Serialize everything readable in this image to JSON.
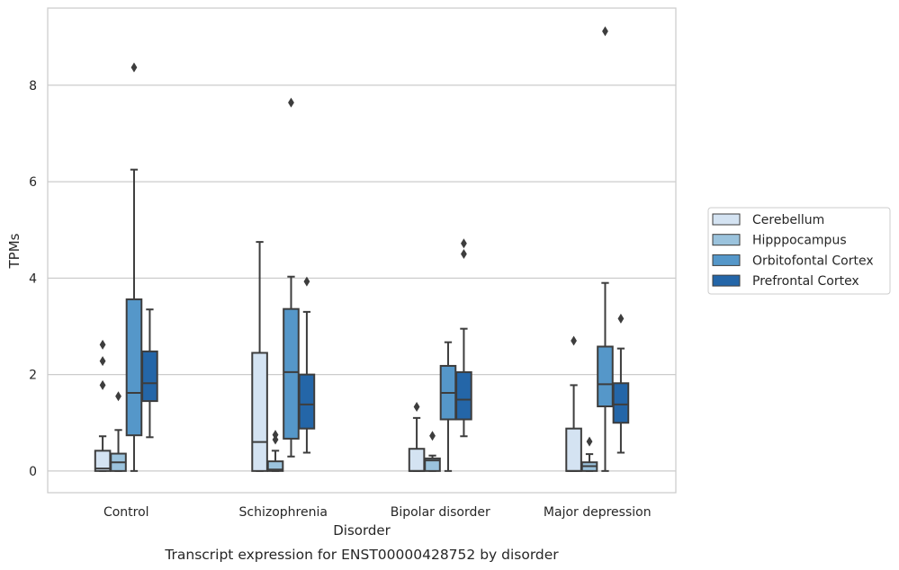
{
  "chart_data": {
    "type": "box",
    "title": "",
    "caption": "Transcript expression for ENST00000428752 by disorder",
    "xlabel": "Disorder",
    "ylabel": "TPMs",
    "ylim": [
      -0.45,
      9.6
    ],
    "yticks": [
      0,
      2,
      4,
      6,
      8
    ],
    "grid": "horizontal",
    "legend_position": "right",
    "categories": [
      "Control",
      "Schizophrenia",
      "Bipolar disorder",
      "Major depression"
    ],
    "series": [
      {
        "name": "Cerebellum",
        "color": "#d4e3f2",
        "boxes": [
          {
            "whisker_low": 0,
            "q1": 0,
            "median": 0.05,
            "q3": 0.42,
            "whisker_high": 0.72,
            "outliers": [
              1.78,
              2.28,
              2.62
            ]
          },
          {
            "whisker_low": 0,
            "q1": 0,
            "median": 0.6,
            "q3": 2.45,
            "whisker_high": 4.75,
            "outliers": []
          },
          {
            "whisker_low": 0,
            "q1": 0,
            "median": 0,
            "q3": 0.46,
            "whisker_high": 1.1,
            "outliers": [
              1.33
            ]
          },
          {
            "whisker_low": 0,
            "q1": 0,
            "median": 0,
            "q3": 0.88,
            "whisker_high": 1.78,
            "outliers": [
              2.7
            ]
          }
        ]
      },
      {
        "name": "Hipppocampus",
        "color": "#9bc3dd",
        "boxes": [
          {
            "whisker_low": 0,
            "q1": 0,
            "median": 0.18,
            "q3": 0.36,
            "whisker_high": 0.85,
            "outliers": [
              1.55
            ]
          },
          {
            "whisker_low": 0,
            "q1": 0,
            "median": 0.03,
            "q3": 0.2,
            "whisker_high": 0.42,
            "outliers": [
              0.65,
              0.75
            ]
          },
          {
            "whisker_low": 0,
            "q1": 0,
            "median": 0.22,
            "q3": 0.26,
            "whisker_high": 0.32,
            "outliers": [
              0.73
            ]
          },
          {
            "whisker_low": 0,
            "q1": 0,
            "median": 0.1,
            "q3": 0.18,
            "whisker_high": 0.35,
            "outliers": [
              0.61
            ]
          }
        ]
      },
      {
        "name": "Orbitofontal Cortex",
        "color": "#5597c9",
        "boxes": [
          {
            "whisker_low": 0,
            "q1": 0.74,
            "median": 1.62,
            "q3": 3.56,
            "whisker_high": 6.25,
            "outliers": [
              8.37
            ]
          },
          {
            "whisker_low": 0.3,
            "q1": 0.67,
            "median": 2.05,
            "q3": 3.36,
            "whisker_high": 4.03,
            "outliers": [
              7.64
            ]
          },
          {
            "whisker_low": 0,
            "q1": 1.07,
            "median": 1.62,
            "q3": 2.18,
            "whisker_high": 2.67,
            "outliers": []
          },
          {
            "whisker_low": 0,
            "q1": 1.34,
            "median": 1.8,
            "q3": 2.58,
            "whisker_high": 3.9,
            "outliers": [
              9.12
            ]
          }
        ]
      },
      {
        "name": "Prefrontal Cortex",
        "color": "#2466a8",
        "boxes": [
          {
            "whisker_low": 0.7,
            "q1": 1.45,
            "median": 1.82,
            "q3": 2.48,
            "whisker_high": 3.35,
            "outliers": []
          },
          {
            "whisker_low": 0.38,
            "q1": 0.88,
            "median": 1.38,
            "q3": 2.0,
            "whisker_high": 3.3,
            "outliers": [
              3.93
            ]
          },
          {
            "whisker_low": 0.72,
            "q1": 1.07,
            "median": 1.48,
            "q3": 2.05,
            "whisker_high": 2.95,
            "outliers": [
              4.5,
              4.72
            ]
          },
          {
            "whisker_low": 0.38,
            "q1": 1.0,
            "median": 1.38,
            "q3": 1.82,
            "whisker_high": 2.54,
            "outliers": [
              3.16
            ]
          }
        ]
      }
    ]
  }
}
